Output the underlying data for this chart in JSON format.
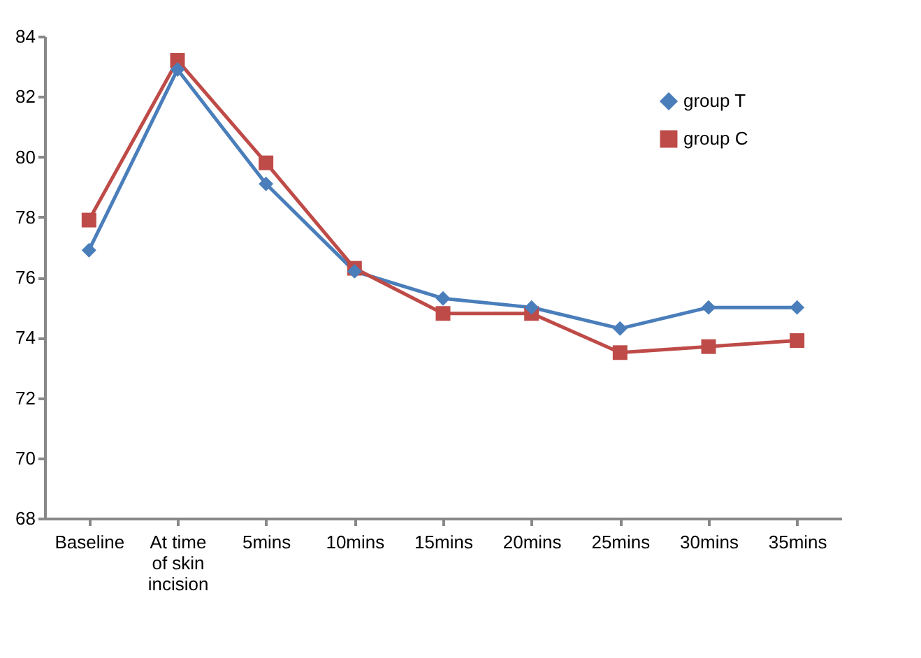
{
  "chart_data": {
    "type": "line",
    "categories": [
      "Baseline",
      "At time of skin incision",
      "5mins",
      "10mins",
      "15mins",
      "20mins",
      "25mins",
      "30mins",
      "35mins"
    ],
    "series": [
      {
        "name": "group T",
        "color": "#4a7ebb",
        "marker": "diamond",
        "values": [
          76.9,
          82.9,
          79.1,
          76.2,
          75.3,
          75.0,
          74.3,
          75.0,
          75.0
        ]
      },
      {
        "name": "group C",
        "color": "#be4b48",
        "marker": "square",
        "values": [
          77.9,
          83.2,
          79.8,
          76.3,
          74.8,
          74.8,
          73.5,
          73.7,
          73.9
        ]
      }
    ],
    "ylim": [
      68,
      84
    ],
    "yticks": [
      68,
      70,
      72,
      74,
      76,
      78,
      80,
      82,
      84
    ],
    "grid": false,
    "legend": "top right",
    "line_style": "solid"
  }
}
